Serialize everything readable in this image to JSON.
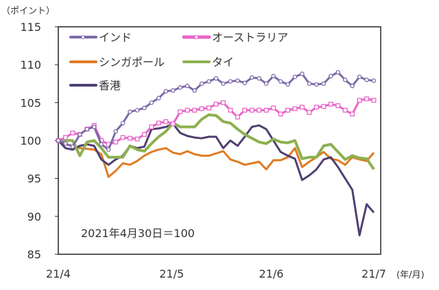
{
  "chart_data": {
    "type": "line",
    "ylabel": "（ポイント）",
    "xunit": "(年/月)",
    "annotation": "2021年4月30日＝100",
    "ylim": [
      85,
      115
    ],
    "yticks": [
      85,
      90,
      95,
      100,
      105,
      110,
      115
    ],
    "xticks": [
      {
        "label": "21/4",
        "index": 0
      },
      {
        "label": "21/5",
        "index": 15.8
      },
      {
        "label": "21/6",
        "index": 29.7
      },
      {
        "label": "21/7",
        "index": 44
      }
    ],
    "grid": false,
    "legend": "top-left",
    "series": [
      {
        "name": "インド",
        "color": "#7d6aa8",
        "marker": "circle",
        "values": [
          100,
          99.6,
          99.2,
          100.8,
          101.5,
          101.8,
          99.5,
          98.8,
          101.2,
          102.3,
          103.8,
          104,
          104.3,
          105,
          105.6,
          106.5,
          106.6,
          107,
          107.2,
          106.6,
          107.5,
          107.8,
          108.2,
          107.5,
          107.8,
          107.9,
          107.6,
          108.3,
          108.2,
          107.5,
          108.5,
          107.8,
          107.4,
          108.4,
          108.8,
          107.5,
          107.4,
          107.5,
          108.5,
          109,
          108,
          107.2,
          108.4,
          108,
          107.9
        ]
      },
      {
        "name": "オーストラリア",
        "color": "#e964c8",
        "marker": "square",
        "values": [
          100,
          100.4,
          101,
          100.8,
          101.5,
          102,
          100,
          99.5,
          99.8,
          100.4,
          100.3,
          100.2,
          100.8,
          101.8,
          102.3,
          102.5,
          102.2,
          103.8,
          104,
          104,
          104.2,
          104.3,
          104.8,
          105,
          104,
          103.1,
          104,
          104,
          104,
          104,
          104.3,
          103.5,
          104,
          104.2,
          104.4,
          103.7,
          104.4,
          104.5,
          104.8,
          104.6,
          104,
          103.5,
          105.3,
          105.5,
          105.3
        ]
      },
      {
        "name": "シンガポール",
        "color": "#e07b22",
        "marker": "none",
        "values": [
          100,
          99.5,
          99.3,
          99,
          98.9,
          98.8,
          98.2,
          95.2,
          96,
          97,
          96.8,
          97.3,
          98,
          98.5,
          98.8,
          99,
          98.4,
          98.2,
          98.6,
          98.2,
          98,
          98,
          98.3,
          98.6,
          97.5,
          97.2,
          96.8,
          97,
          97.2,
          96.2,
          97.4,
          97.4,
          97.8,
          99,
          96.5,
          97.2,
          97.8,
          98.5,
          97.6,
          97.4,
          96.8,
          97.8,
          97.5,
          97.3,
          98.4
        ]
      },
      {
        "name": "タイ",
        "color": "#8db04f",
        "marker": "none",
        "values": [
          100,
          100,
          100,
          98,
          99.8,
          100,
          99,
          97.8,
          97.8,
          97.8,
          99.3,
          98.8,
          98.6,
          99.6,
          100.5,
          101.2,
          102.3,
          101.8,
          101.8,
          101.8,
          102.8,
          103.4,
          103.3,
          102.5,
          102.3,
          101.5,
          100.8,
          100.3,
          99.8,
          99.6,
          100.2,
          99.8,
          99.7,
          100,
          97.6,
          97.8,
          97.8,
          99.3,
          99.5,
          98.5,
          97.5,
          98,
          97.7,
          97.6,
          96.2
        ]
      },
      {
        "name": "香港",
        "color": "#4f3f72",
        "marker": "none",
        "values": [
          100,
          99,
          98.8,
          99.3,
          99.5,
          99.3,
          97.5,
          96.8,
          97.5,
          98,
          99.3,
          99,
          99.2,
          101.5,
          101.6,
          101.8,
          102.2,
          101,
          100.6,
          100.4,
          100.3,
          100.5,
          100.5,
          99,
          100,
          99.3,
          100.5,
          101.8,
          102,
          101.5,
          100,
          98.5,
          98,
          97.6,
          94.8,
          95.4,
          96.2,
          97.5,
          97.8,
          96.5,
          95,
          93.5,
          87.5,
          91.6,
          90.5
        ]
      }
    ]
  }
}
